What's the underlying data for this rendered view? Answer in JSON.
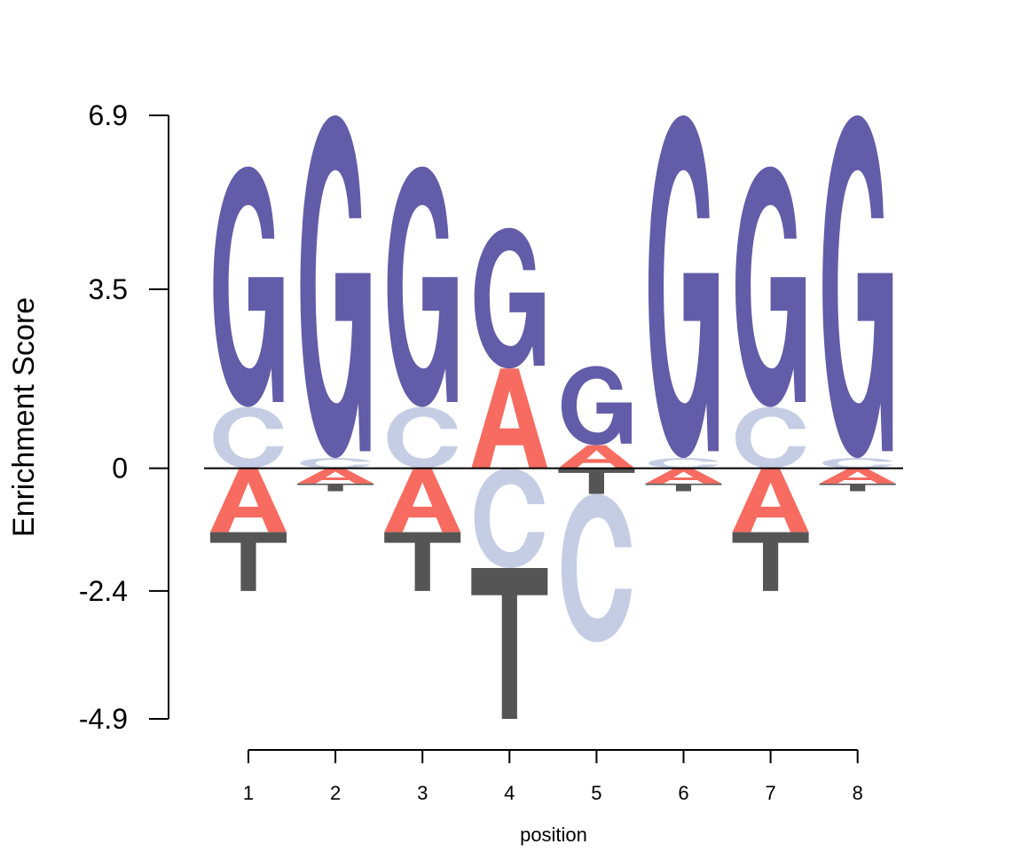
{
  "chart_data": {
    "type": "sequence-logo",
    "title": "",
    "xlabel": "position",
    "ylabel": "Enrichment Score",
    "ylim": [
      -4.9,
      6.9
    ],
    "yticks": [
      "6.9",
      "3.5",
      "0",
      "-2.4",
      "-4.9"
    ],
    "ytick_values": [
      6.9,
      3.5,
      0,
      -2.4,
      -4.9
    ],
    "categories": [
      "1",
      "2",
      "3",
      "4",
      "5",
      "6",
      "7",
      "8"
    ],
    "baseline": 0,
    "colors": {
      "G": "#635ca8",
      "C": "#c4cde3",
      "A": "#f76b60",
      "T": "#555555"
    },
    "positions": [
      {
        "pos": "1",
        "positive": [
          {
            "letter": "C",
            "value": 1.2
          },
          {
            "letter": "G",
            "value": 4.7
          }
        ],
        "negative": [
          {
            "letter": "A",
            "value": 1.25
          },
          {
            "letter": "T",
            "value": 1.15
          }
        ]
      },
      {
        "pos": "2",
        "positive": [
          {
            "letter": "C",
            "value": 0.2
          },
          {
            "letter": "G",
            "value": 6.7
          }
        ],
        "negative": [
          {
            "letter": "A",
            "value": 0.3
          },
          {
            "letter": "T",
            "value": 0.15
          }
        ]
      },
      {
        "pos": "3",
        "positive": [
          {
            "letter": "C",
            "value": 1.2
          },
          {
            "letter": "G",
            "value": 4.7
          }
        ],
        "negative": [
          {
            "letter": "A",
            "value": 1.25
          },
          {
            "letter": "T",
            "value": 1.15
          }
        ]
      },
      {
        "pos": "4",
        "positive": [
          {
            "letter": "A",
            "value": 1.95
          },
          {
            "letter": "G",
            "value": 2.75
          }
        ],
        "negative": [
          {
            "letter": "C",
            "value": 1.95
          },
          {
            "letter": "T",
            "value": 2.95
          }
        ]
      },
      {
        "pos": "5",
        "positive": [
          {
            "letter": "A",
            "value": 0.45
          },
          {
            "letter": "G",
            "value": 1.55
          }
        ],
        "negative": [
          {
            "letter": "T",
            "value": 0.5
          },
          {
            "letter": "C",
            "value": 2.9
          }
        ]
      },
      {
        "pos": "6",
        "positive": [
          {
            "letter": "C",
            "value": 0.2
          },
          {
            "letter": "G",
            "value": 6.7
          }
        ],
        "negative": [
          {
            "letter": "A",
            "value": 0.3
          },
          {
            "letter": "T",
            "value": 0.15
          }
        ]
      },
      {
        "pos": "7",
        "positive": [
          {
            "letter": "C",
            "value": 1.2
          },
          {
            "letter": "G",
            "value": 4.7
          }
        ],
        "negative": [
          {
            "letter": "A",
            "value": 1.25
          },
          {
            "letter": "T",
            "value": 1.15
          }
        ]
      },
      {
        "pos": "8",
        "positive": [
          {
            "letter": "C",
            "value": 0.2
          },
          {
            "letter": "G",
            "value": 6.7
          }
        ],
        "negative": [
          {
            "letter": "A",
            "value": 0.3
          },
          {
            "letter": "T",
            "value": 0.15
          }
        ]
      }
    ]
  }
}
